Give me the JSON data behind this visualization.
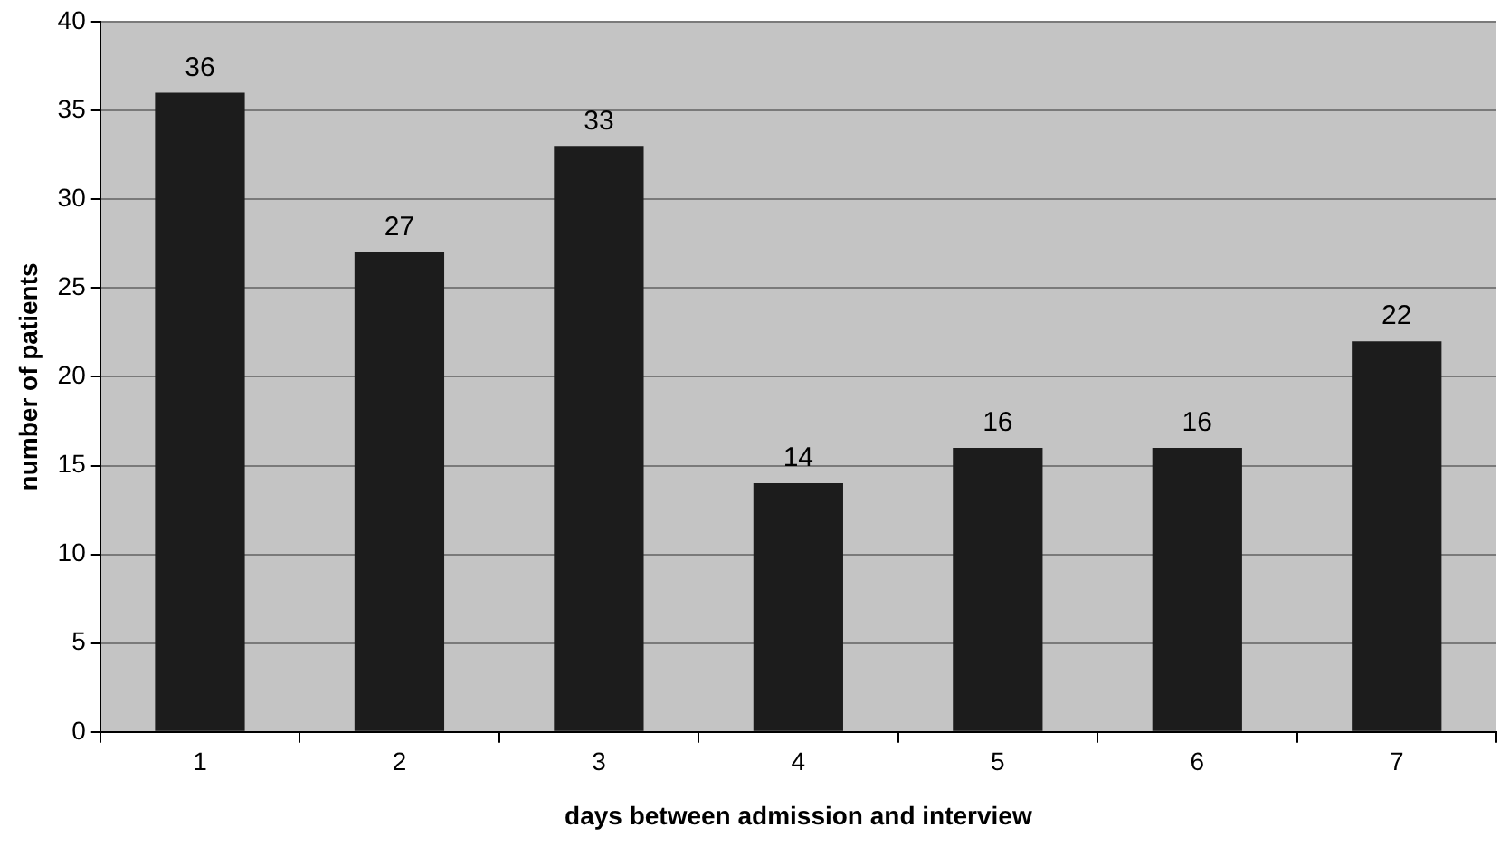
{
  "chart_data": {
    "type": "bar",
    "categories": [
      "1",
      "2",
      "3",
      "4",
      "5",
      "6",
      "7"
    ],
    "values": [
      36,
      27,
      33,
      14,
      16,
      16,
      22
    ],
    "color": "#1c1c1c",
    "xlabel": "days between admission and interview",
    "ylabel": "number of patients",
    "ylim": [
      0,
      40
    ],
    "yticks": [
      0,
      5,
      10,
      15,
      20,
      25,
      30,
      35,
      40
    ],
    "grid": "y",
    "data_labels": true
  }
}
